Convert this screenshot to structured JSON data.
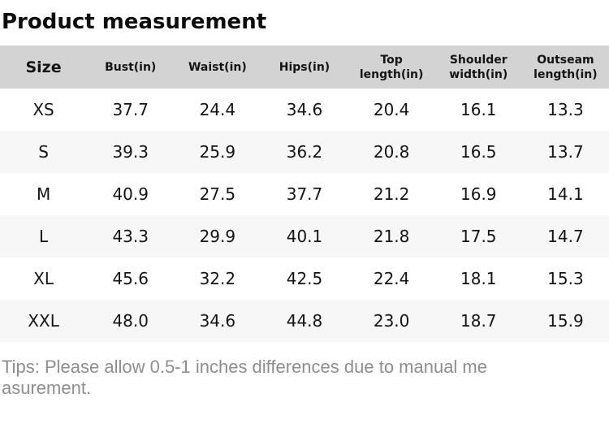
{
  "title": "Product measurement",
  "table": {
    "columns": [
      "Size",
      "Bust(in)",
      "Waist(in)",
      "Hips(in)",
      "Top length(in)",
      "Shoulder width(in)",
      "Outseam length(in)"
    ],
    "rows": [
      {
        "size": "XS",
        "values": [
          "37.7",
          "24.4",
          "34.6",
          "20.4",
          "16.1",
          "13.3"
        ]
      },
      {
        "size": "S",
        "values": [
          "39.3",
          "25.9",
          "36.2",
          "20.8",
          "16.5",
          "13.7"
        ]
      },
      {
        "size": "M",
        "values": [
          "40.9",
          "27.5",
          "37.7",
          "21.2",
          "16.9",
          "14.1"
        ]
      },
      {
        "size": "L",
        "values": [
          "43.3",
          "29.9",
          "40.1",
          "21.8",
          "17.5",
          "14.7"
        ]
      },
      {
        "size": "XL",
        "values": [
          "45.6",
          "32.2",
          "42.5",
          "22.4",
          "18.1",
          "15.3"
        ]
      },
      {
        "size": "XXL",
        "values": [
          "48.0",
          "34.6",
          "44.8",
          "23.0",
          "18.7",
          "15.9"
        ]
      }
    ]
  },
  "tips": {
    "full_text": "Tips: Please allow 0.5-1 inches differences due to manual measurement.",
    "lines": [
      "Tips: Please allow 0.5-1 inches differences due to manual me",
      "asurement."
    ]
  },
  "colors": {
    "header_bg": "#d3d3d3",
    "row_alt_bg": "#f7f7f7",
    "body_text": "#141414",
    "tips_text": "#8e8e8e"
  }
}
